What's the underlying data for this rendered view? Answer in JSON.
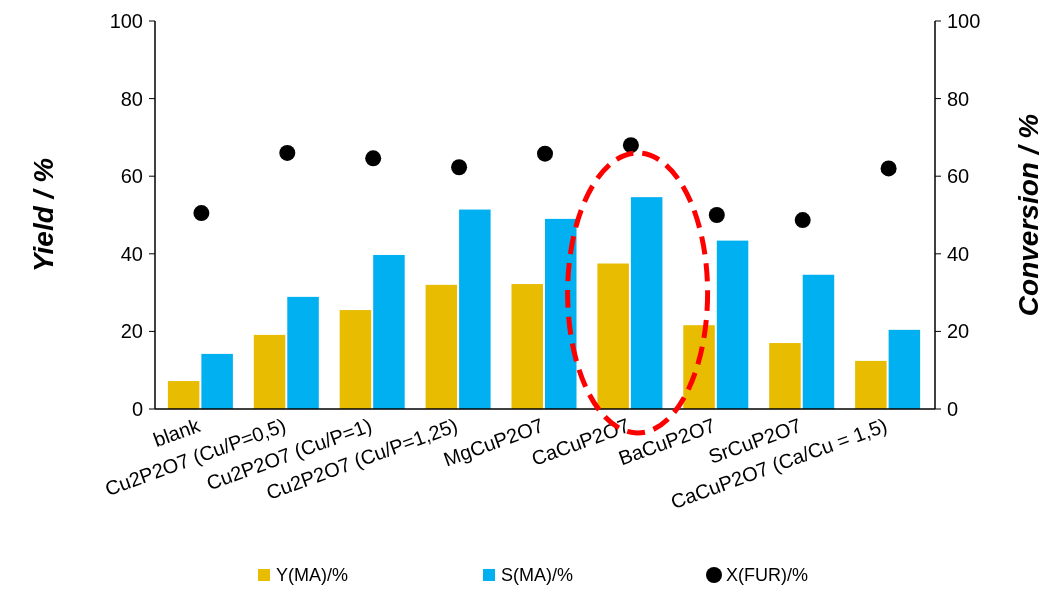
{
  "chart_data": {
    "type": "bar",
    "ylabel": "Yield / %",
    "y2label": "Conversion / %",
    "categories": [
      "blank",
      "Cu2P2O7 (Cu/P=0,5)",
      "Cu2P2O7 (Cu/P=1)",
      "Cu2P2O7 (Cu/P=1,25)",
      "MgCuP2O7",
      "CaCuP2O7",
      "BaCuP2O7",
      "SrCuP2O7",
      "CaCuP2O7 (Ca/Cu = 1,5)"
    ],
    "series": [
      {
        "name": "Y(MA)/%",
        "color": "#e8bc00",
        "values": [
          7.2,
          19.1,
          25.5,
          32,
          32.2,
          37.5,
          21.6,
          17,
          12.4
        ]
      },
      {
        "name": "S(MA)/%",
        "color": "#00b0f0",
        "values": [
          14.2,
          28.9,
          39.7,
          51.4,
          49,
          54.6,
          43.4,
          34.6,
          20.4
        ]
      },
      {
        "name": "X(FUR)/%",
        "type": "scatter",
        "axis": "y2",
        "marker": "circle",
        "color": "#000000",
        "x": [
          "blank",
          "Cu2P2O7 (Cu/P=0,5)",
          "Cu2P2O7 (Cu/P=1)",
          "Cu2P2O7 (Cu/P=1,25)",
          "MgCuP2O7",
          "CaCuP2O7",
          "BaCuP2O7",
          "SrCuP2O7",
          "CaCuP2O7 (Ca/Cu = 1,5)"
        ],
        "values": [
          50.5,
          66,
          64.6,
          62.3,
          65.8,
          68,
          50,
          48.7,
          62
        ]
      }
    ],
    "ylim": [
      0,
      100
    ],
    "yticks": [
      0,
      20,
      40,
      60,
      80,
      100
    ],
    "y2lim": [
      0,
      100
    ],
    "y2ticks": [
      0,
      20,
      40,
      60,
      80,
      100
    ],
    "legend": "bottom"
  }
}
